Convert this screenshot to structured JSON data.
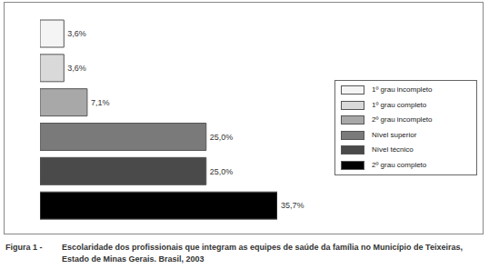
{
  "chart_data": {
    "type": "bar",
    "orientation": "horizontal",
    "figure_label": "Figura 1 -",
    "title": "Escolaridade dos profissionais que integram as equipes de saúde da família no Município de Teixeiras, Estado de Minas Gerais. Brasil, 2003",
    "categories": [
      "1º grau incompleto",
      "1º grau completo",
      "2º grau incompleto",
      "Nível superior",
      "Nível técnico",
      "2º grau completo"
    ],
    "values": [
      3.6,
      3.6,
      7.1,
      25.0,
      25.0,
      35.7
    ],
    "value_labels": [
      "3,6%",
      "3,6%",
      "7,1%",
      "25,0%",
      "25,0%",
      "35,7%"
    ],
    "colors": [
      "#f4f4f4",
      "#d9d9d9",
      "#a8a8a8",
      "#7a7a7a",
      "#4a4a4a",
      "#000000"
    ],
    "data_labels": true,
    "tick_labels": false,
    "legend": "right"
  }
}
